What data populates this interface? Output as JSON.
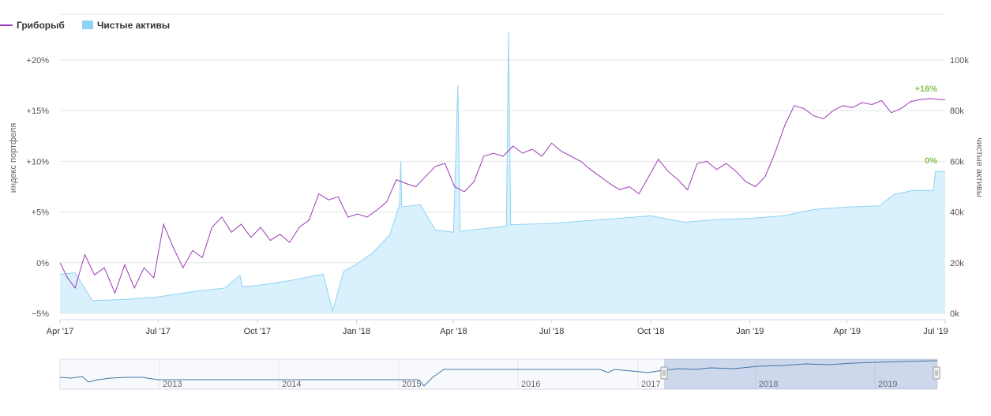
{
  "legend": {
    "items": [
      {
        "label": "Гриборыб",
        "color": "#9b3bb7",
        "symbol": "line"
      },
      {
        "label": "Чистые активы",
        "color": "#8fd3f4",
        "symbol": "area"
      }
    ]
  },
  "chart_data": {
    "type": "line",
    "title": "",
    "grid": true,
    "legend_position": "top-left",
    "x_axis": {
      "type": "date",
      "range": [
        "2017-04-01",
        "2019-07-01"
      ],
      "tick_labels": [
        "Apr '17",
        "Jul '17",
        "Oct '17",
        "Jan '18",
        "Apr '18",
        "Jul '18",
        "Oct '18",
        "Jan '19",
        "Apr '19",
        "Jul '19"
      ]
    },
    "y_left": {
      "label": "индекс портфеля",
      "range": [
        -5,
        20
      ],
      "tick_labels": [
        "−5%",
        "0%",
        "+5%",
        "+10%",
        "+15%",
        "+20%"
      ]
    },
    "y_right": {
      "label": "чистые активы",
      "range": [
        0,
        100000
      ],
      "tick_labels": [
        "0k",
        "20k",
        "40k",
        "60k",
        "80k",
        "100k"
      ]
    },
    "series": [
      {
        "name": "Гриборыб",
        "type": "line",
        "axis": "left",
        "color": "#9b3bb7",
        "end_label": "+16%",
        "points": [
          [
            "2017-04-01",
            0.0
          ],
          [
            "2017-04-08",
            -1.5
          ],
          [
            "2017-04-15",
            -2.5
          ],
          [
            "2017-04-24",
            0.8
          ],
          [
            "2017-05-03",
            -1.2
          ],
          [
            "2017-05-12",
            -0.5
          ],
          [
            "2017-05-22",
            -3.0
          ],
          [
            "2017-05-31",
            -0.2
          ],
          [
            "2017-06-09",
            -2.5
          ],
          [
            "2017-06-18",
            -0.5
          ],
          [
            "2017-06-27",
            -1.5
          ],
          [
            "2017-07-06",
            3.8
          ],
          [
            "2017-07-15",
            1.5
          ],
          [
            "2017-07-24",
            -0.5
          ],
          [
            "2017-08-02",
            1.2
          ],
          [
            "2017-08-11",
            0.5
          ],
          [
            "2017-08-20",
            3.5
          ],
          [
            "2017-08-29",
            4.5
          ],
          [
            "2017-09-07",
            3.0
          ],
          [
            "2017-09-16",
            3.8
          ],
          [
            "2017-09-25",
            2.5
          ],
          [
            "2017-10-04",
            3.5
          ],
          [
            "2017-10-13",
            2.2
          ],
          [
            "2017-10-22",
            2.8
          ],
          [
            "2017-10-31",
            2.0
          ],
          [
            "2017-11-09",
            3.5
          ],
          [
            "2017-11-18",
            4.2
          ],
          [
            "2017-11-27",
            6.8
          ],
          [
            "2017-12-06",
            6.2
          ],
          [
            "2017-12-15",
            6.5
          ],
          [
            "2017-12-24",
            4.5
          ],
          [
            "2018-01-02",
            4.8
          ],
          [
            "2018-01-11",
            4.5
          ],
          [
            "2018-01-20",
            5.2
          ],
          [
            "2018-01-29",
            6.0
          ],
          [
            "2018-02-07",
            8.2
          ],
          [
            "2018-02-16",
            7.8
          ],
          [
            "2018-02-25",
            7.5
          ],
          [
            "2018-03-06",
            8.5
          ],
          [
            "2018-03-15",
            9.5
          ],
          [
            "2018-03-24",
            9.8
          ],
          [
            "2018-04-02",
            7.5
          ],
          [
            "2018-04-11",
            7.0
          ],
          [
            "2018-04-20",
            8.0
          ],
          [
            "2018-04-29",
            10.5
          ],
          [
            "2018-05-08",
            10.8
          ],
          [
            "2018-05-17",
            10.5
          ],
          [
            "2018-05-26",
            11.5
          ],
          [
            "2018-06-04",
            10.8
          ],
          [
            "2018-06-13",
            11.2
          ],
          [
            "2018-06-22",
            10.5
          ],
          [
            "2018-07-01",
            11.8
          ],
          [
            "2018-07-10",
            11.0
          ],
          [
            "2018-07-19",
            10.5
          ],
          [
            "2018-07-28",
            10.0
          ],
          [
            "2018-08-06",
            9.2
          ],
          [
            "2018-08-15",
            8.5
          ],
          [
            "2018-08-24",
            7.8
          ],
          [
            "2018-09-02",
            7.2
          ],
          [
            "2018-09-11",
            7.5
          ],
          [
            "2018-09-20",
            6.8
          ],
          [
            "2018-09-29",
            8.5
          ],
          [
            "2018-10-08",
            10.2
          ],
          [
            "2018-10-17",
            9.0
          ],
          [
            "2018-10-26",
            8.2
          ],
          [
            "2018-11-04",
            7.2
          ],
          [
            "2018-11-13",
            9.8
          ],
          [
            "2018-11-22",
            10.0
          ],
          [
            "2018-12-01",
            9.2
          ],
          [
            "2018-12-10",
            9.8
          ],
          [
            "2018-12-19",
            9.0
          ],
          [
            "2018-12-28",
            8.0
          ],
          [
            "2019-01-06",
            7.5
          ],
          [
            "2019-01-15",
            8.5
          ],
          [
            "2019-01-24",
            10.8
          ],
          [
            "2019-02-02",
            13.5
          ],
          [
            "2019-02-11",
            15.5
          ],
          [
            "2019-02-20",
            15.2
          ],
          [
            "2019-03-01",
            14.5
          ],
          [
            "2019-03-10",
            14.2
          ],
          [
            "2019-03-19",
            15.0
          ],
          [
            "2019-03-28",
            15.5
          ],
          [
            "2019-04-06",
            15.3
          ],
          [
            "2019-04-15",
            15.8
          ],
          [
            "2019-04-24",
            15.6
          ],
          [
            "2019-05-03",
            16.0
          ],
          [
            "2019-05-12",
            14.8
          ],
          [
            "2019-05-21",
            15.2
          ],
          [
            "2019-05-30",
            15.9
          ],
          [
            "2019-06-08",
            16.1
          ],
          [
            "2019-06-17",
            16.2
          ],
          [
            "2019-06-26",
            16.1
          ],
          [
            "2019-07-01",
            16.1
          ]
        ]
      },
      {
        "name": "Чистые активы",
        "type": "area",
        "axis": "right",
        "color": "#8fd3f4",
        "end_label": "0%",
        "points": [
          [
            "2017-04-01",
            15500
          ],
          [
            "2017-04-15",
            16000
          ],
          [
            "2017-05-01",
            5000
          ],
          [
            "2017-06-01",
            5500
          ],
          [
            "2017-07-01",
            6500
          ],
          [
            "2017-08-01",
            8500
          ],
          [
            "2017-09-01",
            10000
          ],
          [
            "2017-09-15",
            15000
          ],
          [
            "2017-09-17",
            10500
          ],
          [
            "2017-10-01",
            11000
          ],
          [
            "2017-11-01",
            13000
          ],
          [
            "2017-12-01",
            15500
          ],
          [
            "2017-12-10",
            1000
          ],
          [
            "2017-12-20",
            16500
          ],
          [
            "2018-01-01",
            19500
          ],
          [
            "2018-01-15",
            23500
          ],
          [
            "2018-02-01",
            31000
          ],
          [
            "2018-02-10",
            43000
          ],
          [
            "2018-02-11",
            60000
          ],
          [
            "2018-02-12",
            42000
          ],
          [
            "2018-03-01",
            43000
          ],
          [
            "2018-03-15",
            33000
          ],
          [
            "2018-04-01",
            32000
          ],
          [
            "2018-04-05",
            90000
          ],
          [
            "2018-04-07",
            32500
          ],
          [
            "2018-05-01",
            33500
          ],
          [
            "2018-05-20",
            34500
          ],
          [
            "2018-05-22",
            111000
          ],
          [
            "2018-05-24",
            35000
          ],
          [
            "2018-07-01",
            35500
          ],
          [
            "2018-08-01",
            36500
          ],
          [
            "2018-09-01",
            37500
          ],
          [
            "2018-10-01",
            38500
          ],
          [
            "2018-11-01",
            36000
          ],
          [
            "2018-12-01",
            37000
          ],
          [
            "2019-01-01",
            37500
          ],
          [
            "2019-02-01",
            38500
          ],
          [
            "2019-03-01",
            41000
          ],
          [
            "2019-04-01",
            42000
          ],
          [
            "2019-05-01",
            42500
          ],
          [
            "2019-05-15",
            47000
          ],
          [
            "2019-06-01",
            48500
          ],
          [
            "2019-06-20",
            48500
          ],
          [
            "2019-06-22",
            56000
          ],
          [
            "2019-07-01",
            56000
          ]
        ]
      }
    ]
  },
  "navigator": {
    "year_labels": [
      "2013",
      "2014",
      "2015",
      "2016",
      "2017",
      "2018",
      "2019"
    ],
    "selection": [
      "2017-04-01",
      "2019-07-01"
    ]
  }
}
